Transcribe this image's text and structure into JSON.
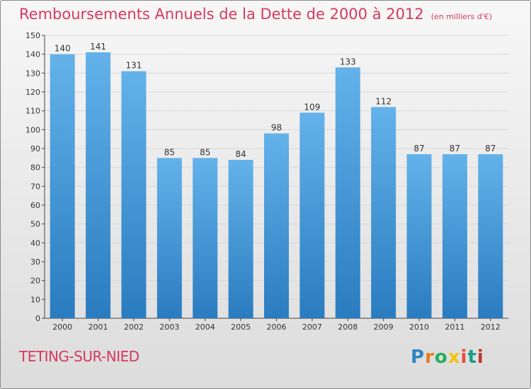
{
  "title": "Remboursements Annuels de la Dette de 2000 à 2012",
  "unit_note": "(en milliers d'€)",
  "town": "TETING-SUR-NIED",
  "brand": "Proxiti",
  "colors": {
    "title": "#d6395f",
    "bar_top": "#63b2ea",
    "bar_bottom": "#2a7cc0",
    "grid": "#d9d9d9"
  },
  "chart_data": {
    "type": "bar",
    "title": "Remboursements Annuels de la Dette de 2000 à 2012",
    "xlabel": "",
    "ylabel": "",
    "categories": [
      "2000",
      "2001",
      "2002",
      "2003",
      "2004",
      "2005",
      "2006",
      "2007",
      "2008",
      "2009",
      "2010",
      "2011",
      "2012"
    ],
    "values": [
      140,
      141,
      131,
      85,
      85,
      84,
      98,
      109,
      133,
      112,
      87,
      87,
      87
    ],
    "ylim": [
      0,
      150
    ],
    "yticks": [
      0,
      10,
      20,
      30,
      40,
      50,
      60,
      70,
      80,
      90,
      100,
      110,
      120,
      130,
      140,
      150
    ],
    "grid": true
  }
}
